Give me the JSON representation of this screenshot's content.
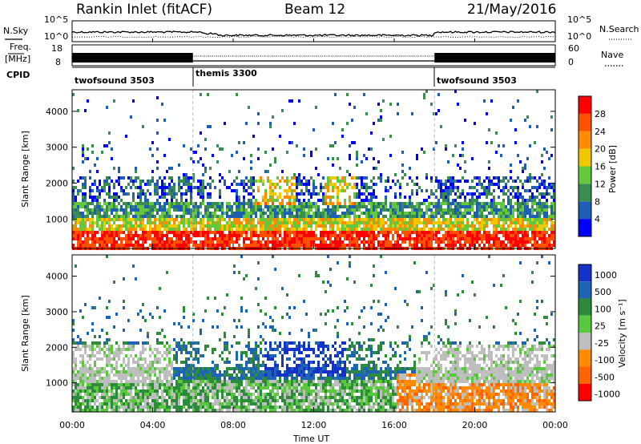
{
  "header": {
    "station": "Rankin Inlet (fitACF)",
    "beam": "Beam 12",
    "date": "21/May/2016"
  },
  "nsky_panel": {
    "left_label": "N.Sky",
    "right_label": "N.Search",
    "ticks_left": [
      "10^5",
      "10^0"
    ],
    "ticks_right": [
      "10^5",
      "10^0"
    ]
  },
  "freq_panel": {
    "left_label_1": "Freq.",
    "left_label_2": "[MHz]",
    "right_label": "Nave",
    "ticks_left": [
      "18",
      "8"
    ],
    "ticks_right": [
      "60",
      "0"
    ]
  },
  "cpid_panel": {
    "label": "CPID",
    "segments": [
      {
        "name": "twofsound 3503",
        "start_hour": 0
      },
      {
        "name": "themis 3300",
        "start_hour": 6
      },
      {
        "name": "twofsound 3503",
        "start_hour": 18
      }
    ]
  },
  "chart_data": [
    {
      "type": "heatmap",
      "title": "",
      "ylabel": "Slant Range [km]",
      "xlabel": "",
      "x_range_hours": [
        0,
        24
      ],
      "ylim": [
        180,
        4600
      ],
      "y_ticks": [
        "1000",
        "2000",
        "3000",
        "4000"
      ],
      "colorbar": {
        "label": "Power [dB]",
        "ticks": [
          "4",
          "8",
          "12",
          "16",
          "20",
          "24",
          "28"
        ],
        "colors": [
          "#0000ff",
          "#1e5fb4",
          "#3c8c50",
          "#64c83c",
          "#f0c800",
          "#ff8c00",
          "#ff5000",
          "#ff0000"
        ]
      }
    },
    {
      "type": "heatmap",
      "title": "",
      "ylabel": "Slant Range [km]",
      "xlabel": "Time UT",
      "x_range_hours": [
        0,
        24
      ],
      "x_ticks": [
        "00:00",
        "04:00",
        "08:00",
        "12:00",
        "16:00",
        "20:00",
        "00:00"
      ],
      "ylim": [
        180,
        4600
      ],
      "y_ticks": [
        "1000",
        "2000",
        "3000",
        "4000"
      ],
      "colorbar": {
        "label": "Velocity [m s⁻¹]",
        "ticks": [
          "1000",
          "500",
          "100",
          "25",
          "-25",
          "-100",
          "-500",
          "-1000"
        ],
        "colors": [
          "#1432c8",
          "#1e64b4",
          "#2d8c3c",
          "#5ac83c",
          "#bebebe",
          "#ff8c00",
          "#ff6400",
          "#ff0000"
        ]
      }
    }
  ]
}
